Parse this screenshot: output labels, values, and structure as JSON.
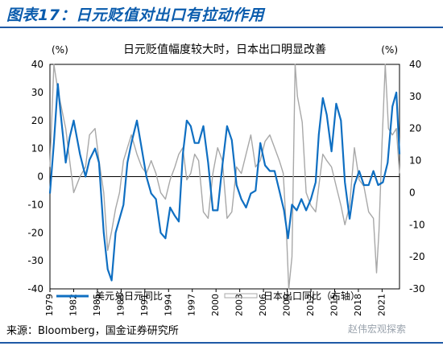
{
  "figure": {
    "title": "图表17：日元贬值对出口有拉动作用",
    "source": "来源：Bloomberg，国金证券研究所",
    "watermark": "赵伟宏观探索"
  },
  "colors": {
    "title_blue": "#0b5cad",
    "series_blue": "#0f6fc2",
    "series_gray": "#a8a8a8",
    "rule_blue": "#1f5aa6"
  },
  "chart_data": {
    "type": "line",
    "title": "日元贬值幅度较大时，日本出口明显改善",
    "left_axis_unit": "(%)",
    "right_axis_unit": "(%)",
    "ylim": [
      -40,
      40
    ],
    "ylim_right": [
      -30,
      40
    ],
    "yticks": [
      -40,
      -30,
      -20,
      -10,
      0,
      10,
      20,
      30,
      40
    ],
    "yticks_right": [
      -30,
      -20,
      -10,
      0,
      10,
      20,
      30,
      40
    ],
    "xlim": [
      1979,
      2023.2
    ],
    "xticks": [
      "1979",
      "1982",
      "1985",
      "1988",
      "1991",
      "1994",
      "1997",
      "2000",
      "2003",
      "2006",
      "2009",
      "2012",
      "2015",
      "2018",
      "2021"
    ],
    "legend_position": "bottom",
    "series": [
      {
        "name": "美元兑日元同比",
        "axis": "left",
        "x": [
          1979.0,
          1979.5,
          1980.0,
          1980.3,
          1981.0,
          1981.5,
          1982.0,
          1982.8,
          1983.5,
          1984.0,
          1984.7,
          1985.2,
          1985.8,
          1986.3,
          1986.8,
          1987.3,
          1987.8,
          1988.3,
          1988.8,
          1989.3,
          1990.0,
          1990.6,
          1991.2,
          1991.8,
          1992.4,
          1993.0,
          1993.6,
          1994.2,
          1994.8,
          1995.3,
          1995.8,
          1996.3,
          1996.8,
          1997.3,
          1997.8,
          1998.4,
          1999.0,
          1999.6,
          2000.2,
          2000.8,
          2001.4,
          2002.0,
          2002.6,
          2003.2,
          2003.8,
          2004.4,
          2005.0,
          2005.6,
          2006.2,
          2006.8,
          2007.4,
          2008.0,
          2008.6,
          2009.1,
          2009.6,
          2010.2,
          2010.8,
          2011.4,
          2012.0,
          2012.6,
          2013.0,
          2013.5,
          2014.0,
          2014.6,
          2015.2,
          2015.8,
          2016.3,
          2016.9,
          2017.5,
          2018.1,
          2018.7,
          2019.3,
          2019.9,
          2020.5,
          2021.1,
          2021.7,
          2022.3,
          2022.8,
          2023.2
        ],
        "values": [
          -6,
          12,
          33,
          24,
          5,
          14,
          20,
          8,
          0,
          6,
          10,
          5,
          -20,
          -33,
          -37,
          -20,
          -15,
          -10,
          5,
          12,
          20,
          10,
          0,
          -6,
          -8,
          -20,
          -22,
          -11,
          -14,
          -16,
          8,
          20,
          18,
          12,
          12,
          18,
          5,
          -12,
          -12,
          4,
          18,
          13,
          -3,
          -8,
          -11,
          -6,
          -5,
          12,
          4,
          2,
          2,
          -5,
          -12,
          -22,
          -10,
          -12,
          -8,
          -12,
          -8,
          -2,
          15,
          28,
          22,
          9,
          26,
          20,
          -2,
          -15,
          -3,
          2,
          -3,
          -3,
          2,
          -3,
          -2,
          5,
          25,
          30,
          8
        ]
      },
      {
        "name": "日本出口同比（右轴）",
        "axis": "right",
        "x": [
          1979.0,
          1979.5,
          1980.0,
          1980.5,
          1981.0,
          1981.5,
          1982.0,
          1982.8,
          1983.5,
          1984.0,
          1984.7,
          1985.2,
          1985.8,
          1986.3,
          1986.8,
          1987.3,
          1987.8,
          1988.3,
          1988.8,
          1989.3,
          1990.0,
          1990.6,
          1991.2,
          1991.8,
          1992.4,
          1993.0,
          1993.6,
          1994.2,
          1994.8,
          1995.3,
          1995.8,
          1996.3,
          1996.8,
          1997.3,
          1997.8,
          1998.4,
          1999.0,
          1999.6,
          2000.2,
          2000.8,
          2001.4,
          2002.0,
          2002.6,
          2003.2,
          2003.8,
          2004.4,
          2005.0,
          2005.6,
          2006.2,
          2006.8,
          2007.4,
          2008.0,
          2008.5,
          2008.9,
          2009.2,
          2009.6,
          2010.0,
          2010.3,
          2010.9,
          2011.4,
          2012.0,
          2012.6,
          2013.0,
          2013.5,
          2014.0,
          2014.6,
          2015.2,
          2015.8,
          2016.3,
          2016.9,
          2017.5,
          2018.1,
          2018.7,
          2019.3,
          2019.9,
          2020.3,
          2020.6,
          2021.0,
          2021.4,
          2021.8,
          2022.3,
          2022.8,
          2023.2
        ],
        "values": [
          8,
          40,
          32,
          26,
          20,
          10,
          0,
          5,
          8,
          18,
          20,
          10,
          0,
          -18,
          -12,
          -5,
          0,
          10,
          14,
          18,
          12,
          8,
          6,
          10,
          6,
          0,
          -2,
          4,
          8,
          12,
          14,
          4,
          6,
          12,
          10,
          -6,
          -8,
          6,
          14,
          10,
          -8,
          -6,
          8,
          6,
          12,
          18,
          8,
          10,
          16,
          18,
          14,
          10,
          6,
          -12,
          -30,
          -20,
          40,
          30,
          22,
          0,
          -4,
          -6,
          2,
          12,
          10,
          8,
          2,
          -4,
          -10,
          -4,
          14,
          4,
          2,
          -6,
          -8,
          -25,
          -12,
          16,
          40,
          20,
          18,
          20,
          6
        ]
      }
    ]
  }
}
